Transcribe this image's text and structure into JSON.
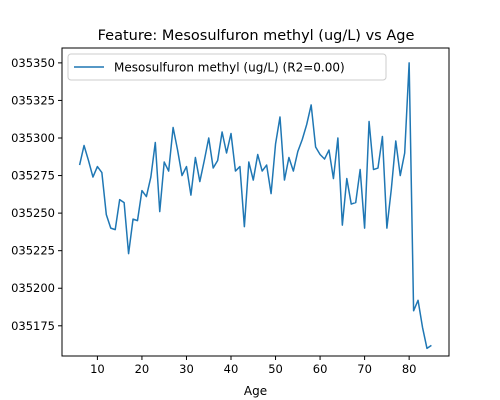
{
  "chart_data": {
    "type": "line",
    "title": "Feature: Mesosulfuron methyl (ug/L) vs Age",
    "xlabel": "Age",
    "ylabel": "",
    "xlim": [
      2.05,
      88.95
    ],
    "ylim": [
      0.0351549,
      0.0353599
    ],
    "x_ticks": [
      10,
      20,
      30,
      40,
      50,
      60,
      70,
      80
    ],
    "x_tick_labels": [
      "10",
      "20",
      "30",
      "40",
      "50",
      "60",
      "70",
      "80"
    ],
    "y_ticks": [
      0.035175,
      0.0352,
      0.035225,
      0.03525,
      0.035275,
      0.0353,
      0.035325,
      0.03535
    ],
    "y_tick_labels": [
      "035175",
      "035200",
      "035225",
      "035250",
      "035275",
      "035300",
      "035325",
      "035350"
    ],
    "grid": false,
    "legend_position": "top-left",
    "series": [
      {
        "name": "Mesosulfuron methyl (ug/L) (R2=0.00)",
        "color": "#1f77b4",
        "x": [
          6,
          7,
          8,
          9,
          10,
          11,
          12,
          13,
          14,
          15,
          16,
          17,
          18,
          19,
          20,
          21,
          22,
          23,
          24,
          25,
          26,
          27,
          28,
          29,
          30,
          31,
          32,
          33,
          34,
          35,
          36,
          37,
          38,
          39,
          40,
          41,
          42,
          43,
          44,
          45,
          46,
          47,
          48,
          49,
          50,
          51,
          52,
          53,
          54,
          55,
          56,
          57,
          58,
          59,
          60,
          61,
          62,
          63,
          64,
          65,
          66,
          67,
          68,
          69,
          70,
          71,
          72,
          73,
          74,
          75,
          76,
          77,
          78,
          79,
          80,
          81,
          82,
          83,
          84,
          85
        ],
        "y": [
          0.035282,
          0.035295,
          0.035285,
          0.035274,
          0.035281,
          0.035277,
          0.035249,
          0.03524,
          0.035239,
          0.035259,
          0.035257,
          0.035223,
          0.035246,
          0.035245,
          0.035265,
          0.035261,
          0.035274,
          0.035297,
          0.035251,
          0.035284,
          0.035278,
          0.035307,
          0.035292,
          0.035275,
          0.035281,
          0.035262,
          0.035287,
          0.035271,
          0.035285,
          0.0353,
          0.03528,
          0.035285,
          0.035304,
          0.03529,
          0.035303,
          0.035278,
          0.035281,
          0.035241,
          0.035284,
          0.035272,
          0.035289,
          0.035278,
          0.035282,
          0.035263,
          0.035296,
          0.035314,
          0.035272,
          0.035287,
          0.035278,
          0.035291,
          0.035299,
          0.035309,
          0.035322,
          0.035294,
          0.035289,
          0.035286,
          0.035292,
          0.035273,
          0.0353,
          0.035242,
          0.035273,
          0.035256,
          0.035257,
          0.035279,
          0.03524,
          0.035311,
          0.035279,
          0.03528,
          0.035301,
          0.03524,
          0.035266,
          0.035298,
          0.035275,
          0.03529,
          0.03535,
          0.035185,
          0.035192,
          0.035174,
          0.03516,
          0.035162
        ]
      }
    ]
  }
}
